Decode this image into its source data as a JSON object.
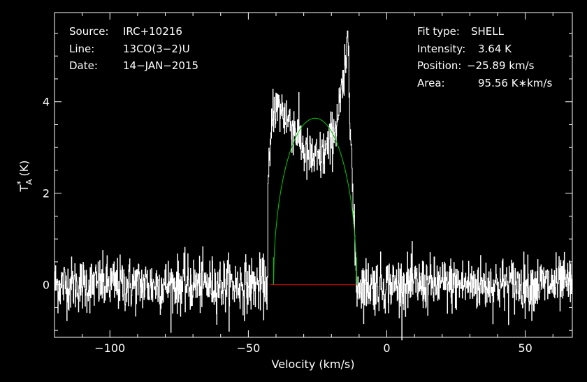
{
  "chart_data": {
    "type": "line",
    "xlabel": "Velocity (km/s)",
    "ylabel": "T",
    "ylabel_super": "*",
    "ylabel_sub": "A",
    "ylabel_unit": "(K)",
    "xlim": [
      -120,
      67
    ],
    "ylim": [
      -1.15,
      5.95
    ],
    "xticks": [
      -100,
      -50,
      0,
      50
    ],
    "xtick_labels": [
      "−100",
      "−50",
      "0",
      "50"
    ],
    "yticks": [
      0,
      2,
      4
    ],
    "ytick_labels": [
      "0",
      "2",
      "4"
    ],
    "grid": false,
    "info_left": [
      {
        "key": "Source:",
        "value": "IRC+10216"
      },
      {
        "key": "Line:",
        "value": "13CO(3−2)U"
      },
      {
        "key": "Date:",
        "value": "14−JAN−2015"
      }
    ],
    "info_right": [
      {
        "key": "Fit type:",
        "value": "SHELL"
      },
      {
        "key": "Intensity:",
        "value": "3.64 K"
      },
      {
        "key": "Position:",
        "value": "−25.89 km/s"
      },
      {
        "key": "Area:",
        "value": "95.56 K∗km/s"
      }
    ],
    "fit": {
      "type": "shell",
      "center_kms": -25.89,
      "peak_K": 3.64,
      "half_width_kms": 15.0,
      "horn": 0.0,
      "color": "#00cc00"
    },
    "spectrum_noise_rms_K": 0.3,
    "spectrum_features": {
      "plateau_K": [
        [
          -41,
          3.9
        ],
        [
          -38,
          3.8
        ],
        [
          -33,
          3.4
        ],
        [
          -29,
          2.8
        ],
        [
          -25,
          2.7
        ],
        [
          -21,
          3.0
        ],
        [
          -18,
          3.6
        ],
        [
          -15,
          4.6
        ],
        [
          -14,
          5.5
        ],
        [
          -13,
          3.2
        ],
        [
          -12,
          2.0
        ]
      ],
      "peak_spike": {
        "x": -14.2,
        "y": 5.55
      }
    },
    "baseline": {
      "x_start": -42,
      "x_end": -11,
      "y": 0,
      "color": "#dd0000"
    },
    "colors": {
      "spectrum": "#ffffff",
      "fit": "#00cc00",
      "baseline": "#dd0000",
      "background": "#000000",
      "axes": "#ffffff"
    }
  }
}
